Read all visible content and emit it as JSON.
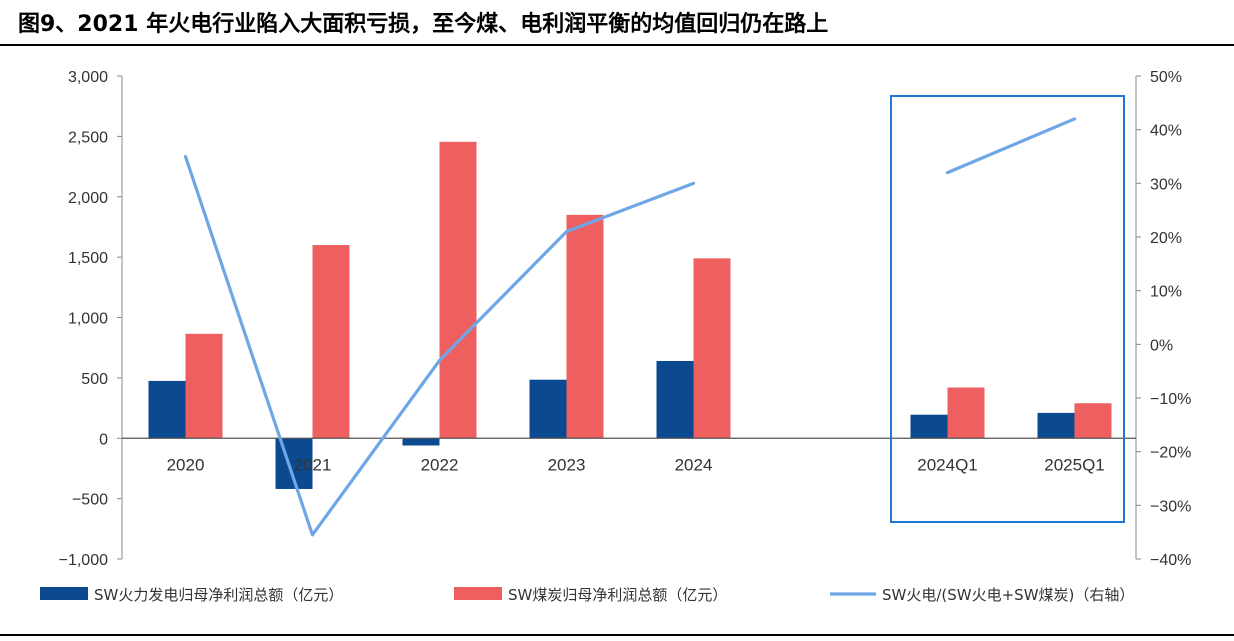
{
  "title": "图9、2021 年火电行业陷入大面积亏损，至今煤、电利润平衡的均值回归仍在路上",
  "chart_data": {
    "type": "bar",
    "categories": [
      "2020",
      "2021",
      "2022",
      "2023",
      "2024",
      "",
      "2024Q1",
      "2025Q1"
    ],
    "series": [
      {
        "name": "SW火力发电归母净利润总额（亿元）",
        "type": "bar",
        "axis": "left",
        "color": "#0b4a91",
        "values": [
          475,
          -420,
          -60,
          485,
          640,
          null,
          195,
          210
        ]
      },
      {
        "name": "SW煤炭归母净利润总额（亿元）",
        "type": "bar",
        "axis": "left",
        "color": "#ee5f60",
        "values": [
          865,
          1600,
          2455,
          1850,
          1490,
          null,
          420,
          290
        ]
      },
      {
        "name": "SW火电/(SW火电+SW煤炭)（右轴）",
        "type": "line",
        "axis": "right",
        "color": "#6fa7e6",
        "values": [
          35,
          -35.5,
          -3,
          21,
          30,
          null,
          32,
          42
        ]
      }
    ],
    "y_left": {
      "ylim": [
        -1000,
        3000
      ],
      "ticks": [
        3000,
        2500,
        2000,
        1500,
        1000,
        500,
        0,
        -500,
        -1000
      ],
      "tick_labels": [
        "3,000",
        "2,500",
        "2,000",
        "1,500",
        "1,000",
        "500",
        "0",
        "−500",
        "−1,000"
      ]
    },
    "y_right": {
      "ylim": [
        -40,
        50
      ],
      "ticks": [
        50,
        40,
        30,
        20,
        10,
        0,
        -10,
        -20,
        -30,
        -40
      ],
      "tick_labels": [
        "50%",
        "40%",
        "30%",
        "20%",
        "10%",
        "0%",
        "−10%",
        "−20%",
        "−30%",
        "−40%"
      ]
    },
    "highlight_box_color": "#1f78d1",
    "grid": false,
    "legend_position": "bottom"
  }
}
